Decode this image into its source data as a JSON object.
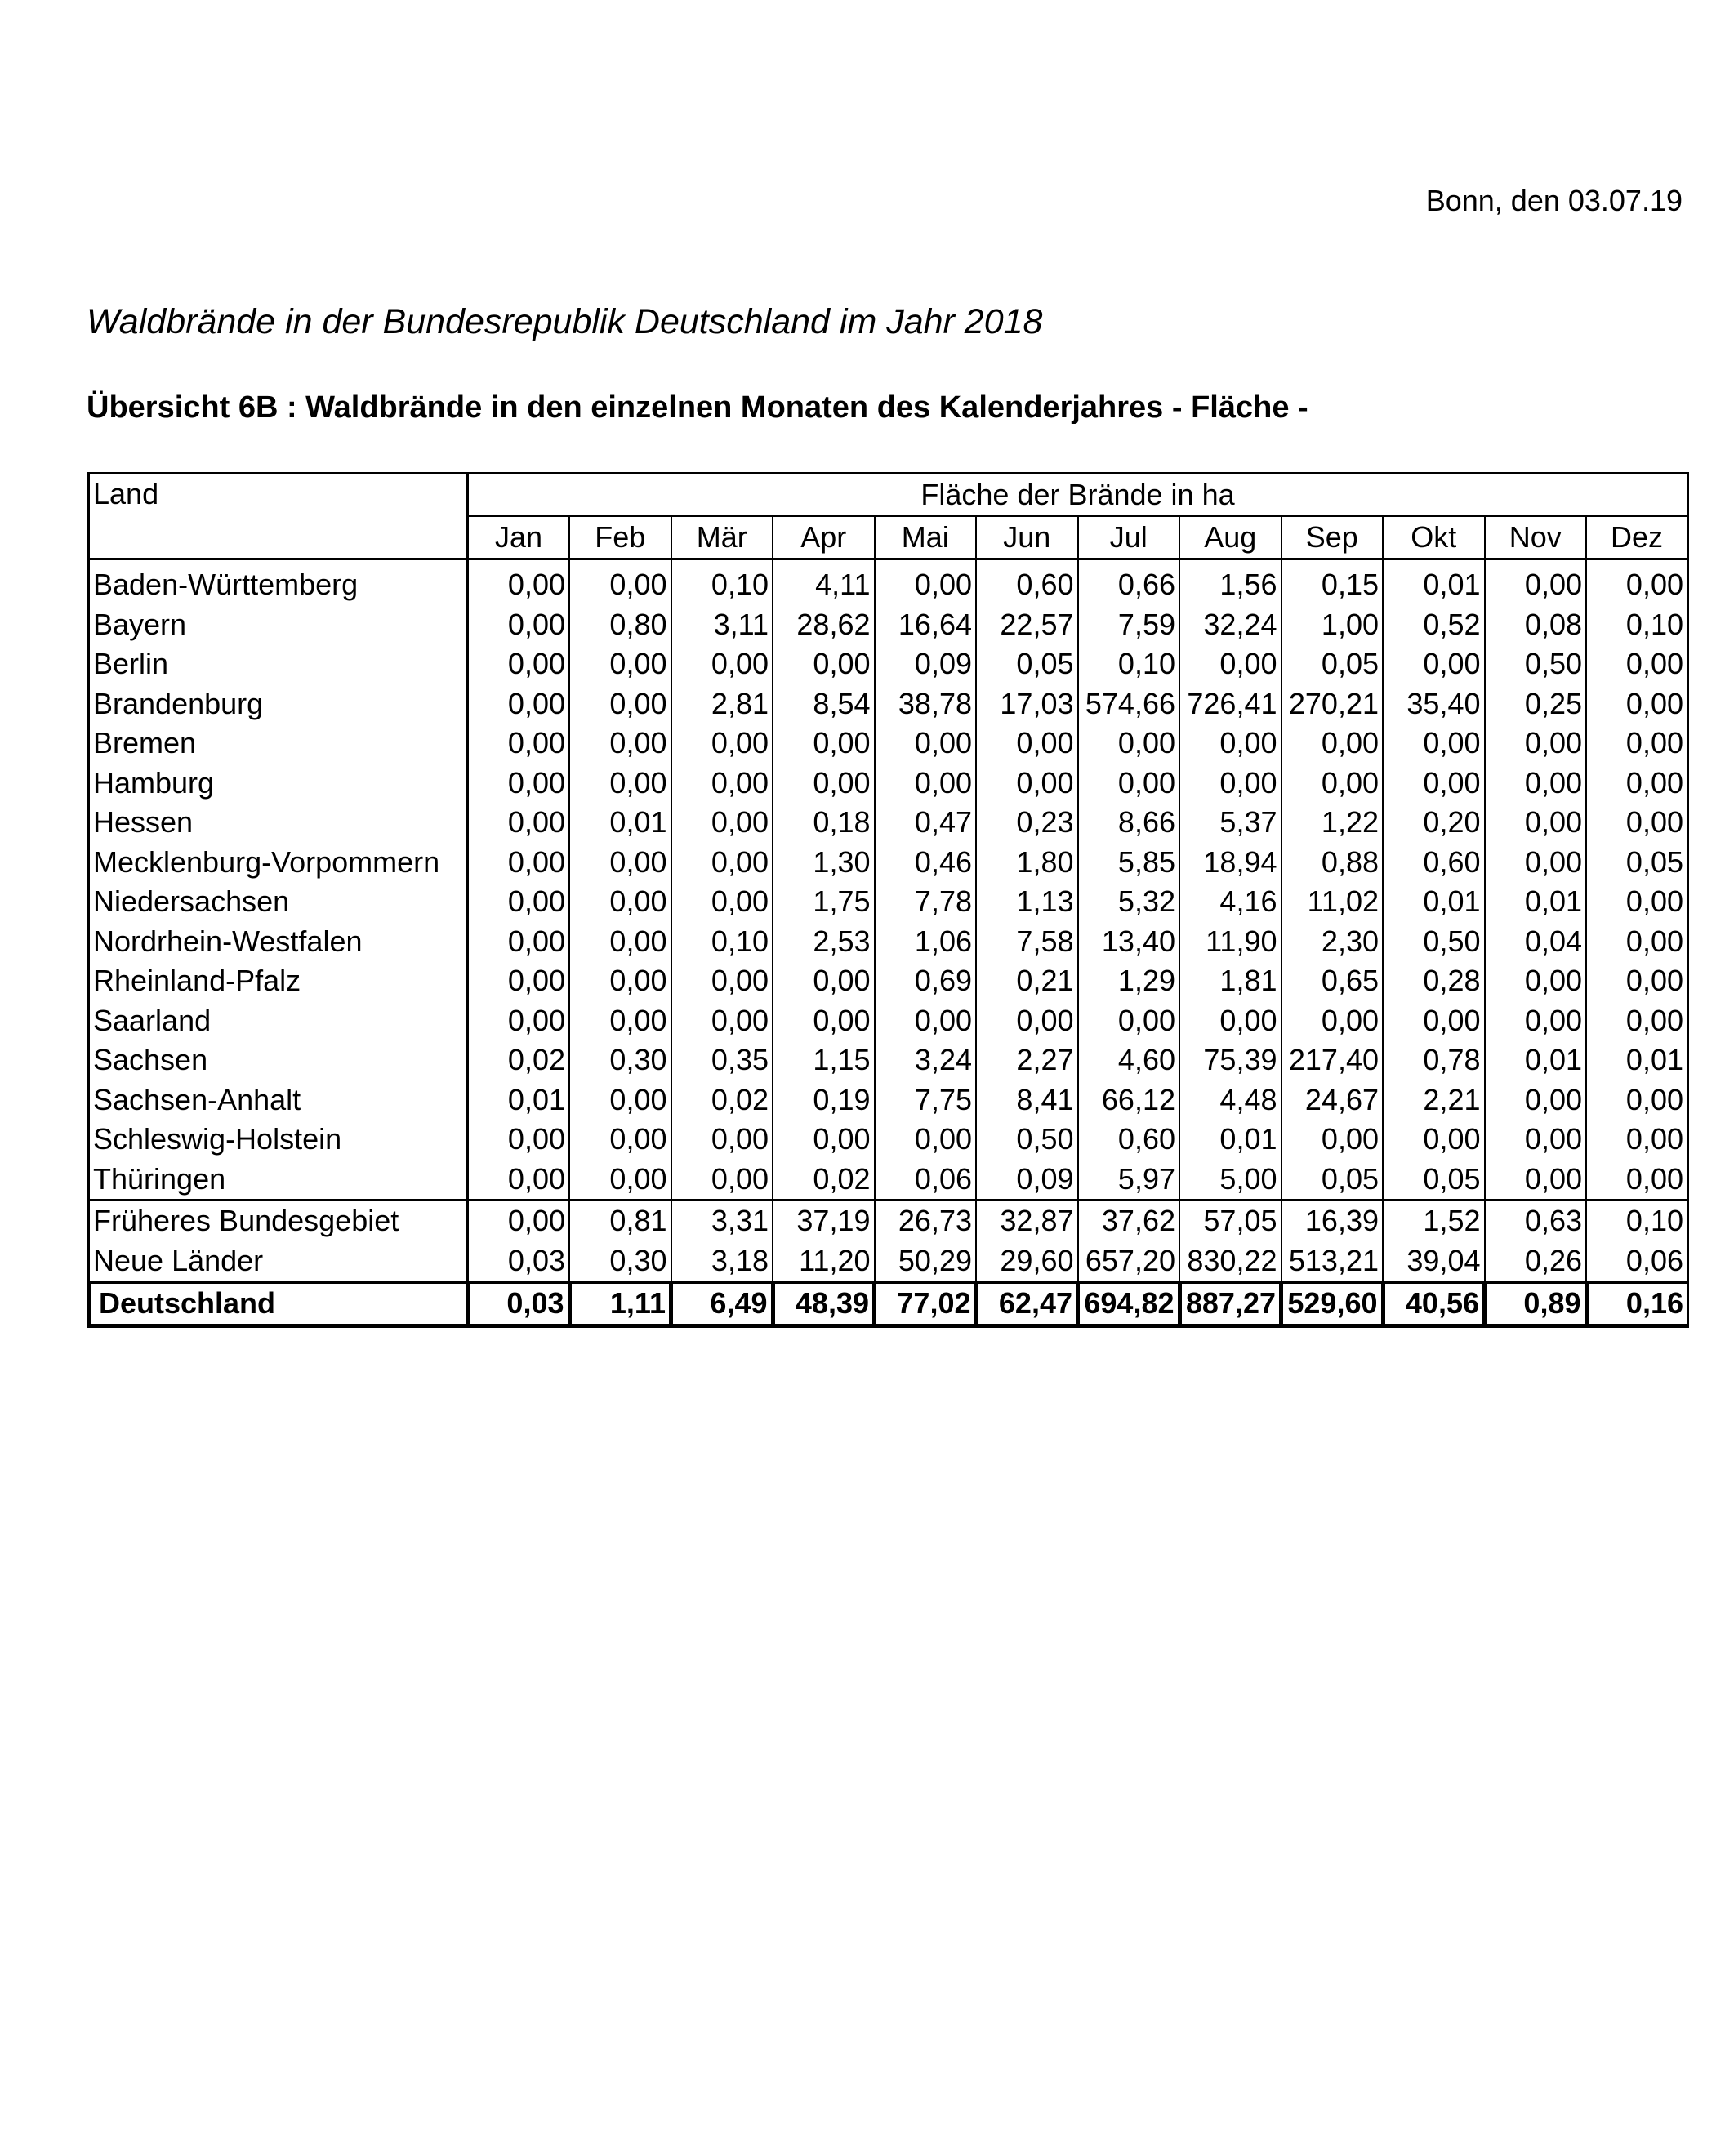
{
  "header": {
    "date_line": "Bonn, den 03.07.19",
    "title": "Waldbrände in der Bundesrepublik Deutschland im Jahr 2018",
    "subtitle": "Übersicht 6B : Waldbrände in den einzelnen Monaten des Kalenderjahres - Fläche -"
  },
  "table": {
    "land_header": "Land",
    "group_header": "Fläche der Brände in ha",
    "months": [
      "Jan",
      "Feb",
      "Mär",
      "Apr",
      "Mai",
      "Jun",
      "Jul",
      "Aug",
      "Sep",
      "Okt",
      "Nov",
      "Dez"
    ],
    "rows": [
      {
        "land": "Baden-Württemberg",
        "values": [
          "0,00",
          "0,00",
          "0,10",
          "4,11",
          "0,00",
          "0,60",
          "0,66",
          "1,56",
          "0,15",
          "0,01",
          "0,00",
          "0,00"
        ]
      },
      {
        "land": "Bayern",
        "values": [
          "0,00",
          "0,80",
          "3,11",
          "28,62",
          "16,64",
          "22,57",
          "7,59",
          "32,24",
          "1,00",
          "0,52",
          "0,08",
          "0,10"
        ]
      },
      {
        "land": "Berlin",
        "values": [
          "0,00",
          "0,00",
          "0,00",
          "0,00",
          "0,09",
          "0,05",
          "0,10",
          "0,00",
          "0,05",
          "0,00",
          "0,50",
          "0,00"
        ]
      },
      {
        "land": "Brandenburg",
        "values": [
          "0,00",
          "0,00",
          "2,81",
          "8,54",
          "38,78",
          "17,03",
          "574,66",
          "726,41",
          "270,21",
          "35,40",
          "0,25",
          "0,00"
        ]
      },
      {
        "land": "Bremen",
        "values": [
          "0,00",
          "0,00",
          "0,00",
          "0,00",
          "0,00",
          "0,00",
          "0,00",
          "0,00",
          "0,00",
          "0,00",
          "0,00",
          "0,00"
        ]
      },
      {
        "land": "Hamburg",
        "values": [
          "0,00",
          "0,00",
          "0,00",
          "0,00",
          "0,00",
          "0,00",
          "0,00",
          "0,00",
          "0,00",
          "0,00",
          "0,00",
          "0,00"
        ]
      },
      {
        "land": "Hessen",
        "values": [
          "0,00",
          "0,01",
          "0,00",
          "0,18",
          "0,47",
          "0,23",
          "8,66",
          "5,37",
          "1,22",
          "0,20",
          "0,00",
          "0,00"
        ]
      },
      {
        "land": "Mecklenburg-Vorpommern",
        "values": [
          "0,00",
          "0,00",
          "0,00",
          "1,30",
          "0,46",
          "1,80",
          "5,85",
          "18,94",
          "0,88",
          "0,60",
          "0,00",
          "0,05"
        ]
      },
      {
        "land": "Niedersachsen",
        "values": [
          "0,00",
          "0,00",
          "0,00",
          "1,75",
          "7,78",
          "1,13",
          "5,32",
          "4,16",
          "11,02",
          "0,01",
          "0,01",
          "0,00"
        ]
      },
      {
        "land": "Nordrhein-Westfalen",
        "values": [
          "0,00",
          "0,00",
          "0,10",
          "2,53",
          "1,06",
          "7,58",
          "13,40",
          "11,90",
          "2,30",
          "0,50",
          "0,04",
          "0,00"
        ]
      },
      {
        "land": "Rheinland-Pfalz",
        "values": [
          "0,00",
          "0,00",
          "0,00",
          "0,00",
          "0,69",
          "0,21",
          "1,29",
          "1,81",
          "0,65",
          "0,28",
          "0,00",
          "0,00"
        ]
      },
      {
        "land": "Saarland",
        "values": [
          "0,00",
          "0,00",
          "0,00",
          "0,00",
          "0,00",
          "0,00",
          "0,00",
          "0,00",
          "0,00",
          "0,00",
          "0,00",
          "0,00"
        ]
      },
      {
        "land": "Sachsen",
        "values": [
          "0,02",
          "0,30",
          "0,35",
          "1,15",
          "3,24",
          "2,27",
          "4,60",
          "75,39",
          "217,40",
          "0,78",
          "0,01",
          "0,01"
        ]
      },
      {
        "land": "Sachsen-Anhalt",
        "values": [
          "0,01",
          "0,00",
          "0,02",
          "0,19",
          "7,75",
          "8,41",
          "66,12",
          "4,48",
          "24,67",
          "2,21",
          "0,00",
          "0,00"
        ]
      },
      {
        "land": "Schleswig-Holstein",
        "values": [
          "0,00",
          "0,00",
          "0,00",
          "0,00",
          "0,00",
          "0,50",
          "0,60",
          "0,01",
          "0,00",
          "0,00",
          "0,00",
          "0,00"
        ]
      },
      {
        "land": "Thüringen",
        "values": [
          "0,00",
          "0,00",
          "0,00",
          "0,02",
          "0,06",
          "0,09",
          "5,97",
          "5,00",
          "0,05",
          "0,05",
          "0,00",
          "0,00"
        ]
      }
    ],
    "summary_rows": [
      {
        "land": "Früheres Bundesgebiet",
        "values": [
          "0,00",
          "0,81",
          "3,31",
          "37,19",
          "26,73",
          "32,87",
          "37,62",
          "57,05",
          "16,39",
          "1,52",
          "0,63",
          "0,10"
        ]
      },
      {
        "land": "Neue Länder",
        "values": [
          "0,03",
          "0,30",
          "3,18",
          "11,20",
          "50,29",
          "29,60",
          "657,20",
          "830,22",
          "513,21",
          "39,04",
          "0,26",
          "0,06"
        ]
      }
    ],
    "total_row": {
      "land": "Deutschland",
      "values": [
        "0,03",
        "1,11",
        "6,49",
        "48,39",
        "77,02",
        "62,47",
        "694,82",
        "887,27",
        "529,60",
        "40,56",
        "0,89",
        "0,16"
      ]
    }
  }
}
